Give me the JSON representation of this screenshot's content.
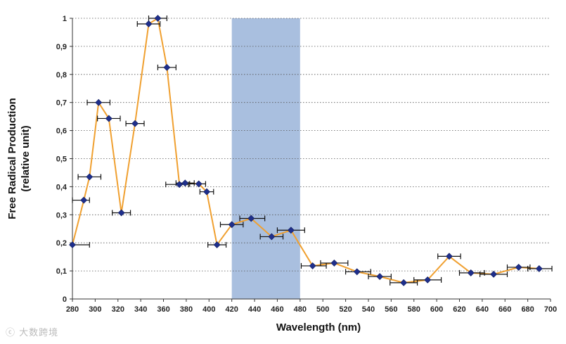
{
  "chart_data": {
    "type": "line",
    "title": "",
    "xlabel": "Wavelength (nm)",
    "ylabel": [
      "Free Radical Production",
      "(relative unit)"
    ],
    "xlim": [
      280,
      700
    ],
    "ylim": [
      0,
      1
    ],
    "x_ticks": [
      280,
      300,
      320,
      340,
      360,
      380,
      400,
      420,
      440,
      460,
      480,
      500,
      520,
      540,
      560,
      580,
      600,
      620,
      640,
      660,
      680,
      700
    ],
    "y_ticks": [
      0,
      0.1,
      0.2,
      0.3,
      0.4,
      0.5,
      0.6,
      0.7,
      0.8,
      0.9,
      1
    ],
    "y_tick_labels": [
      "0",
      "0,1",
      "0,2",
      "0,3",
      "0,4",
      "0,5",
      "0,6",
      "0,7",
      "0,8",
      "0,9",
      "1"
    ],
    "grid": "horizontal-dotted",
    "highlight_band": {
      "x0": 420,
      "x1": 480,
      "color": "#a9bfdf"
    },
    "line_color": "#f0a030",
    "marker_color": "#1f2f8c",
    "series": [
      {
        "points": [
          {
            "x": 280,
            "y": 0.193,
            "xerr_low": 0,
            "xerr_high": 15
          },
          {
            "x": 290,
            "y": 0.352,
            "xerr_low": 12,
            "xerr_high": 5
          },
          {
            "x": 295,
            "y": 0.435,
            "xerr_low": 10,
            "xerr_high": 10
          },
          {
            "x": 303,
            "y": 0.7,
            "xerr_low": 10,
            "xerr_high": 10
          },
          {
            "x": 312,
            "y": 0.643,
            "xerr_low": 10,
            "xerr_high": 10
          },
          {
            "x": 323,
            "y": 0.307,
            "xerr_low": 8,
            "xerr_high": 8
          },
          {
            "x": 335,
            "y": 0.625,
            "xerr_low": 8,
            "xerr_high": 8
          },
          {
            "x": 347,
            "y": 0.98,
            "xerr_low": 10,
            "xerr_high": 10
          },
          {
            "x": 355,
            "y": 1.0,
            "xerr_low": 8,
            "xerr_high": 8
          },
          {
            "x": 363,
            "y": 0.825,
            "xerr_low": 8,
            "xerr_high": 8
          },
          {
            "x": 374,
            "y": 0.408,
            "xerr_low": 12,
            "xerr_high": 8
          },
          {
            "x": 379,
            "y": 0.413,
            "xerr_low": 8,
            "xerr_high": 8
          },
          {
            "x": 391,
            "y": 0.41,
            "xerr_low": 8,
            "xerr_high": 6
          },
          {
            "x": 398,
            "y": 0.382,
            "xerr_low": 6,
            "xerr_high": 6
          },
          {
            "x": 407,
            "y": 0.193,
            "xerr_low": 8,
            "xerr_high": 8
          },
          {
            "x": 420,
            "y": 0.265,
            "xerr_low": 10,
            "xerr_high": 10
          },
          {
            "x": 437,
            "y": 0.287,
            "xerr_low": 10,
            "xerr_high": 12
          },
          {
            "x": 455,
            "y": 0.222,
            "xerr_low": 10,
            "xerr_high": 10
          },
          {
            "x": 472,
            "y": 0.245,
            "xerr_low": 12,
            "xerr_high": 12
          },
          {
            "x": 491,
            "y": 0.118,
            "xerr_low": 10,
            "xerr_high": 12
          },
          {
            "x": 510,
            "y": 0.128,
            "xerr_low": 12,
            "xerr_high": 12
          },
          {
            "x": 530,
            "y": 0.097,
            "xerr_low": 10,
            "xerr_high": 12
          },
          {
            "x": 550,
            "y": 0.08,
            "xerr_low": 10,
            "xerr_high": 10
          },
          {
            "x": 571,
            "y": 0.058,
            "xerr_low": 12,
            "xerr_high": 12
          },
          {
            "x": 592,
            "y": 0.068,
            "xerr_low": 12,
            "xerr_high": 12
          },
          {
            "x": 611,
            "y": 0.152,
            "xerr_low": 10,
            "xerr_high": 10
          },
          {
            "x": 630,
            "y": 0.093,
            "xerr_low": 10,
            "xerr_high": 12
          },
          {
            "x": 650,
            "y": 0.088,
            "xerr_low": 12,
            "xerr_high": 12
          },
          {
            "x": 672,
            "y": 0.113,
            "xerr_low": 10,
            "xerr_high": 10
          },
          {
            "x": 690,
            "y": 0.108,
            "xerr_low": 10,
            "xerr_high": 12
          }
        ]
      }
    ]
  },
  "watermark": "ⓒ 大数跨境"
}
